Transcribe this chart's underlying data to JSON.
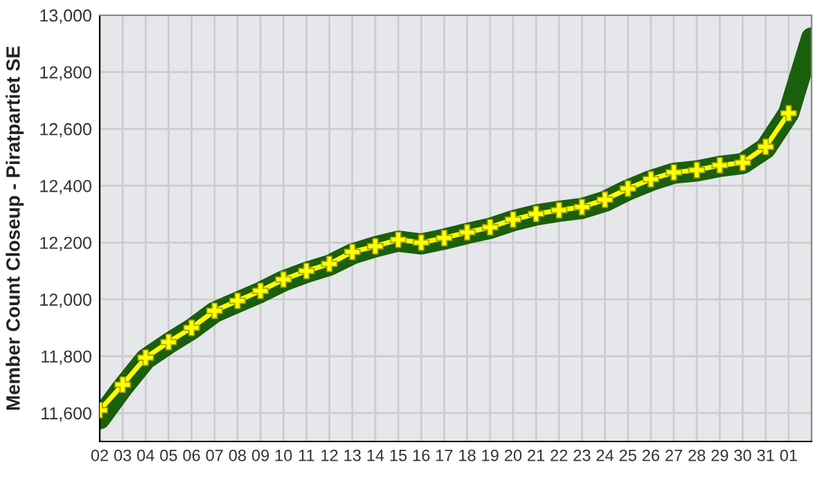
{
  "chart_data": {
    "type": "line",
    "ylabel": "Member Count Closeup - Piratpartiet SE",
    "categories": [
      "02",
      "03",
      "04",
      "05",
      "06",
      "07",
      "08",
      "09",
      "10",
      "11",
      "12",
      "13",
      "14",
      "15",
      "16",
      "17",
      "18",
      "19",
      "20",
      "21",
      "22",
      "23",
      "24",
      "25",
      "26",
      "27",
      "28",
      "29",
      "30",
      "31",
      "01",
      null
    ],
    "ylim": [
      11500,
      13000
    ],
    "yticks": [
      {
        "value": 11600,
        "label": "11,600"
      },
      {
        "value": 11800,
        "label": "11,800"
      },
      {
        "value": 12000,
        "label": "12,000"
      },
      {
        "value": 12200,
        "label": "12,200"
      },
      {
        "value": 12400,
        "label": "12,400"
      },
      {
        "value": 12600,
        "label": "12,600"
      },
      {
        "value": 12800,
        "label": "12,800"
      },
      {
        "value": 13000,
        "label": "13,000"
      }
    ],
    "grid": true,
    "series": [
      {
        "color": "#1b5e0c",
        "marker": "none",
        "line_style": "solid",
        "values": [
          11580,
          11690,
          11790,
          11845,
          11895,
          11955,
          11990,
          12025,
          12065,
          12095,
          12120,
          12160,
          12185,
          12205,
          12195,
          12212,
          12232,
          12250,
          12277,
          12297,
          12310,
          12320,
          12345,
          12385,
          12418,
          12444,
          12452,
          12468,
          12478,
          12532,
          12655,
          12920
        ]
      },
      {
        "color": "#ffff00",
        "marker": "cross",
        "line_style": "solid",
        "values": [
          11610,
          11700,
          11795,
          11850,
          11900,
          11960,
          11995,
          12030,
          12070,
          12100,
          12125,
          12167,
          12187,
          12210,
          12200,
          12216,
          12236,
          12254,
          12281,
          12301,
          12314,
          12325,
          12351,
          12390,
          12423,
          12447,
          12455,
          12472,
          12481,
          12537,
          12655,
          null
        ]
      }
    ]
  }
}
